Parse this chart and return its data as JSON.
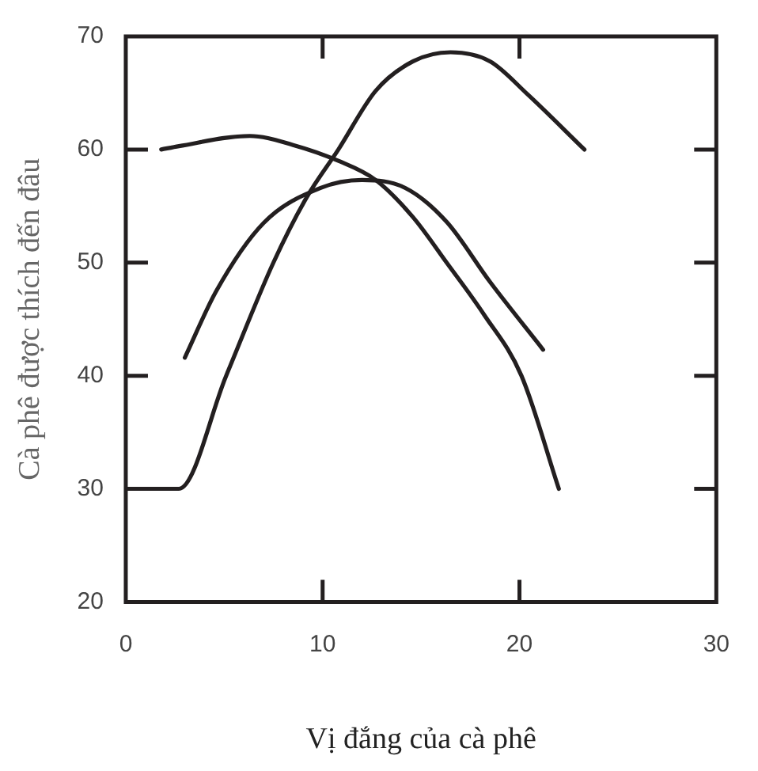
{
  "chart_data": {
    "type": "line",
    "xlabel": "Vị đắng của cà phê",
    "ylabel": "Cà phê được thích đến đâu",
    "xlim": [
      0,
      30
    ],
    "xticks": [
      0,
      10,
      20,
      30
    ],
    "ylim": [
      20,
      70
    ],
    "yticks": [
      20,
      30,
      40,
      50,
      60,
      70
    ],
    "grid": false,
    "legend": false,
    "marker": "none",
    "line_style": "solid",
    "series": [
      {
        "color": "#231f20",
        "x": [
          1.8,
          2.7,
          6.3,
          8.5,
          10.8,
          12.7,
          14.6,
          16.3,
          18.2,
          20.1,
          22
        ],
        "values": [
          60,
          60.3,
          61.2,
          60.4,
          59,
          57.3,
          54,
          50,
          45.4,
          40,
          30
        ]
      },
      {
        "color": "#231f20",
        "x": [
          3,
          4.6,
          7,
          9.9,
          12,
          14.2,
          16.3,
          18.5,
          21.2
        ],
        "values": [
          41.6,
          47.5,
          53.5,
          56.6,
          57.3,
          56.6,
          53.6,
          48.3,
          42.3
        ]
      },
      {
        "color": "#231f20",
        "x": [
          0.8,
          2.7,
          5.1,
          7.5,
          9.2,
          10.8,
          12.7,
          14.6,
          16.5,
          18.5,
          20.4,
          23.3
        ],
        "values": [
          30,
          30,
          40,
          50,
          55.8,
          60,
          65.2,
          67.8,
          68.6,
          67.8,
          64.9,
          60
        ]
      }
    ]
  }
}
